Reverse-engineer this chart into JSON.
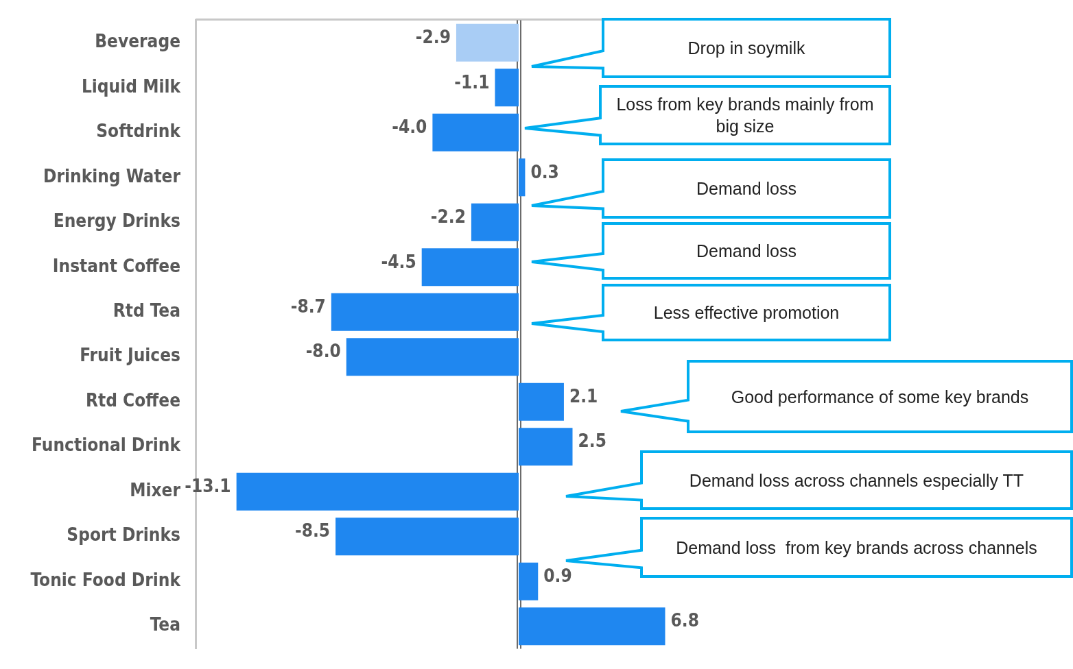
{
  "chart_data": {
    "type": "bar",
    "orientation": "horizontal",
    "categories": [
      "Beverage",
      "Liquid Milk",
      "Softdrink",
      "Drinking Water",
      "Energy Drinks",
      "Instant Coffee",
      "Rtd Tea",
      "Fruit Juices",
      "Rtd Coffee",
      "Functional Drink",
      "Mixer",
      "Sport Drinks",
      "Tonic Food Drink",
      "Tea"
    ],
    "values": [
      -2.9,
      -1.1,
      -4.0,
      0.3,
      -2.2,
      -4.5,
      -8.7,
      -8.0,
      2.1,
      2.5,
      -13.1,
      -8.5,
      0.9,
      6.8
    ],
    "value_labels": [
      "-2.9",
      "-1.1",
      "-4.0",
      "0.3",
      "-2.2",
      "-4.5",
      "-8.7",
      "-8.0",
      "2.1",
      "2.5",
      "-13.1",
      "-8.5",
      "0.9",
      "6.8"
    ],
    "colors": [
      "#a9cdf5",
      "#1f87f0",
      "#1f87f0",
      "#1f87f0",
      "#1f87f0",
      "#1f87f0",
      "#1f87f0",
      "#1f87f0",
      "#1f87f0",
      "#1f87f0",
      "#1f87f0",
      "#1f87f0",
      "#1f87f0",
      "#1f87f0"
    ],
    "xlim": [
      -15,
      15
    ],
    "tick_labels": "y",
    "annotations": [
      "Drop in soymilk",
      "Loss from key brands mainly from big size",
      "Demand loss",
      "Demand loss",
      "Less effective promotion",
      "Good performance of some key brands",
      "Demand loss across channels especially TT",
      "Demand loss  from key brands across channels"
    ]
  }
}
